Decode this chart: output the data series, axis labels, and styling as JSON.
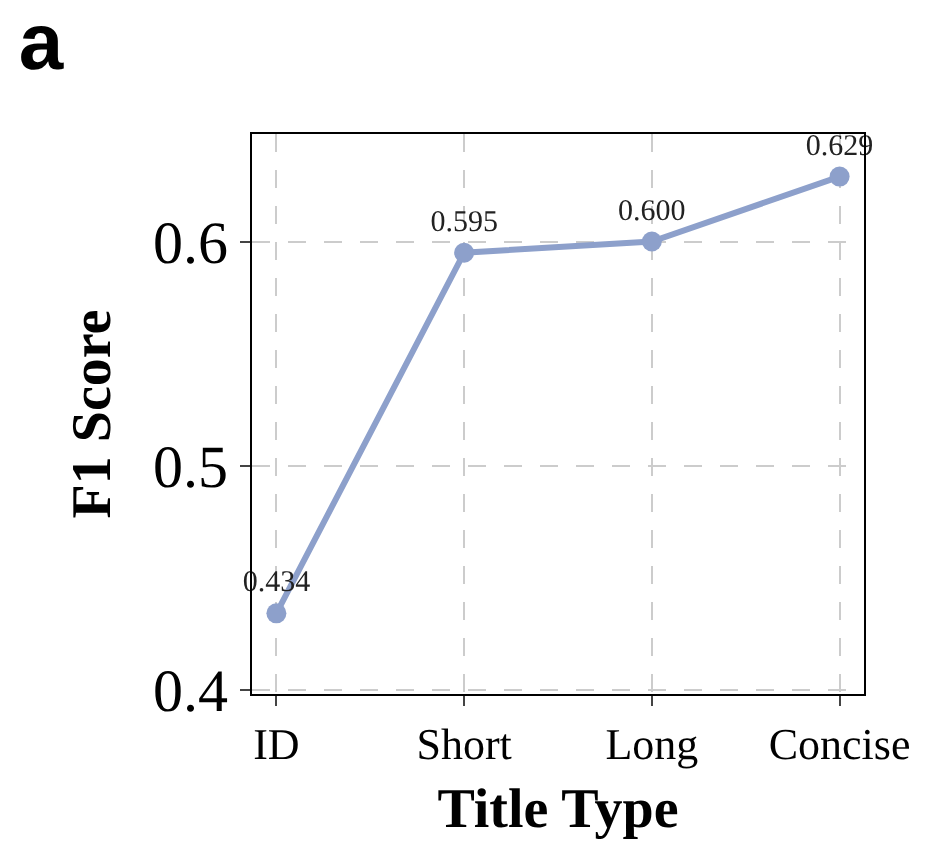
{
  "chart_data": {
    "type": "line",
    "title": "a",
    "xlabel": "Title Type",
    "ylabel": "F1 Score",
    "categories": [
      "ID",
      "Short",
      "Long",
      "Concise"
    ],
    "series": [
      {
        "color": "#8da0cb",
        "values": [
          0.434,
          0.595,
          0.6,
          0.629
        ],
        "value_labels": [
          "0.434",
          "0.595",
          "0.600",
          "0.629"
        ]
      }
    ],
    "ylim": [
      0.398,
      0.648
    ],
    "yticks": [
      0.4,
      0.5,
      0.6
    ],
    "grid": true,
    "marker": "circle",
    "line_style": "solid"
  }
}
